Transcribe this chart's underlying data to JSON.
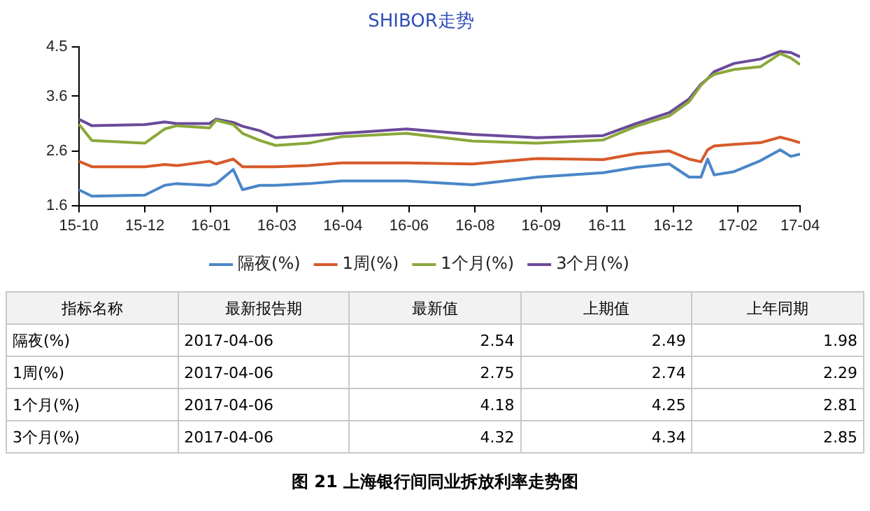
{
  "chart_data": [
    {
      "type": "line",
      "title": "SHIBOR走势",
      "x": [
        "2015-10-08",
        "2015-10-18",
        "2015-11-27",
        "2015-12-12",
        "2015-12-21",
        "2016-01-15",
        "2016-01-20",
        "2016-02-02",
        "2016-02-09",
        "2016-02-22",
        "2016-03-05",
        "2016-03-30",
        "2016-04-24",
        "2016-06-12",
        "2016-08-01",
        "2016-09-19",
        "2016-11-08",
        "2016-12-03",
        "2016-12-28",
        "2017-01-12",
        "2017-01-21",
        "2017-01-26",
        "2017-01-31",
        "2017-02-15",
        "2017-03-07",
        "2017-03-22",
        "2017-03-30",
        "2017-04-06"
      ],
      "series": [
        {
          "name": "隔夜(%)",
          "color": "#4a86c8",
          "values": [
            1.89,
            1.77,
            1.79,
            1.97,
            2.0,
            1.97,
            2.0,
            2.26,
            1.89,
            1.97,
            1.97,
            2.0,
            2.05,
            2.05,
            1.98,
            2.12,
            2.2,
            2.3,
            2.36,
            2.12,
            2.12,
            2.45,
            2.16,
            2.22,
            2.42,
            2.62,
            2.5,
            2.54
          ]
        },
        {
          "name": "1周(%)",
          "color": "#d65a2a",
          "values": [
            2.41,
            2.31,
            2.31,
            2.35,
            2.33,
            2.41,
            2.36,
            2.45,
            2.31,
            2.31,
            2.31,
            2.33,
            2.38,
            2.38,
            2.36,
            2.46,
            2.44,
            2.55,
            2.6,
            2.45,
            2.4,
            2.62,
            2.69,
            2.72,
            2.75,
            2.85,
            2.8,
            2.75
          ]
        },
        {
          "name": "1个月(%)",
          "color": "#8aa83a",
          "values": [
            3.09,
            2.79,
            2.74,
            3.0,
            3.06,
            3.02,
            3.16,
            3.08,
            2.92,
            2.79,
            2.7,
            2.74,
            2.86,
            2.92,
            2.78,
            2.74,
            2.8,
            3.05,
            3.24,
            3.5,
            3.8,
            3.92,
            4.0,
            4.09,
            4.14,
            4.38,
            4.3,
            4.18
          ]
        },
        {
          "name": "3个月(%)",
          "color": "#6a4a9a",
          "values": [
            3.18,
            3.06,
            3.08,
            3.13,
            3.1,
            3.1,
            3.18,
            3.12,
            3.05,
            2.97,
            2.84,
            2.88,
            2.92,
            3.0,
            2.9,
            2.84,
            2.88,
            3.1,
            3.3,
            3.55,
            3.82,
            3.92,
            4.05,
            4.2,
            4.28,
            4.42,
            4.4,
            4.32
          ]
        }
      ],
      "xlim": [
        "2015-10-08",
        "2017-04-06"
      ],
      "xticks": [
        {
          "value": "2015-10-08",
          "label": "15-10"
        },
        {
          "value": "2015-11-27",
          "label": "15-12"
        },
        {
          "value": "2016-01-16",
          "label": "16-01"
        },
        {
          "value": "2016-03-06",
          "label": "16-03"
        },
        {
          "value": "2016-04-25",
          "label": "16-04"
        },
        {
          "value": "2016-06-14",
          "label": "16-06"
        },
        {
          "value": "2016-08-03",
          "label": "16-08"
        },
        {
          "value": "2016-09-22",
          "label": "16-09"
        },
        {
          "value": "2016-11-11",
          "label": "16-11"
        },
        {
          "value": "2016-12-31",
          "label": "16-12"
        },
        {
          "value": "2017-02-18",
          "label": "17-02"
        },
        {
          "value": "2017-04-06",
          "label": "17-04"
        }
      ],
      "ylim": [
        1.6,
        4.5
      ],
      "yticks": [
        1.6,
        2.6,
        3.6,
        4.5
      ],
      "grid": false,
      "legend": "bottom",
      "marker": "none",
      "line_style": "solid"
    },
    {
      "type": "other",
      "categories": [
        "指标名称",
        "最新报告期",
        "最新值",
        "上期值",
        "上年同期"
      ],
      "annotations": [
        "隔夜(%)",
        "2017-04-06",
        "2.54",
        "2.49",
        "1.98",
        "1周(%)",
        "2017-04-06",
        "2.75",
        "2.74",
        "2.29",
        "1个月(%)",
        "2017-04-06",
        "4.18",
        "4.25",
        "2.81",
        "3个月(%)",
        "2017-04-06",
        "4.32",
        "4.34",
        "2.85",
        "图 21 上海银行间同业拆放利率走势图"
      ]
    }
  ]
}
